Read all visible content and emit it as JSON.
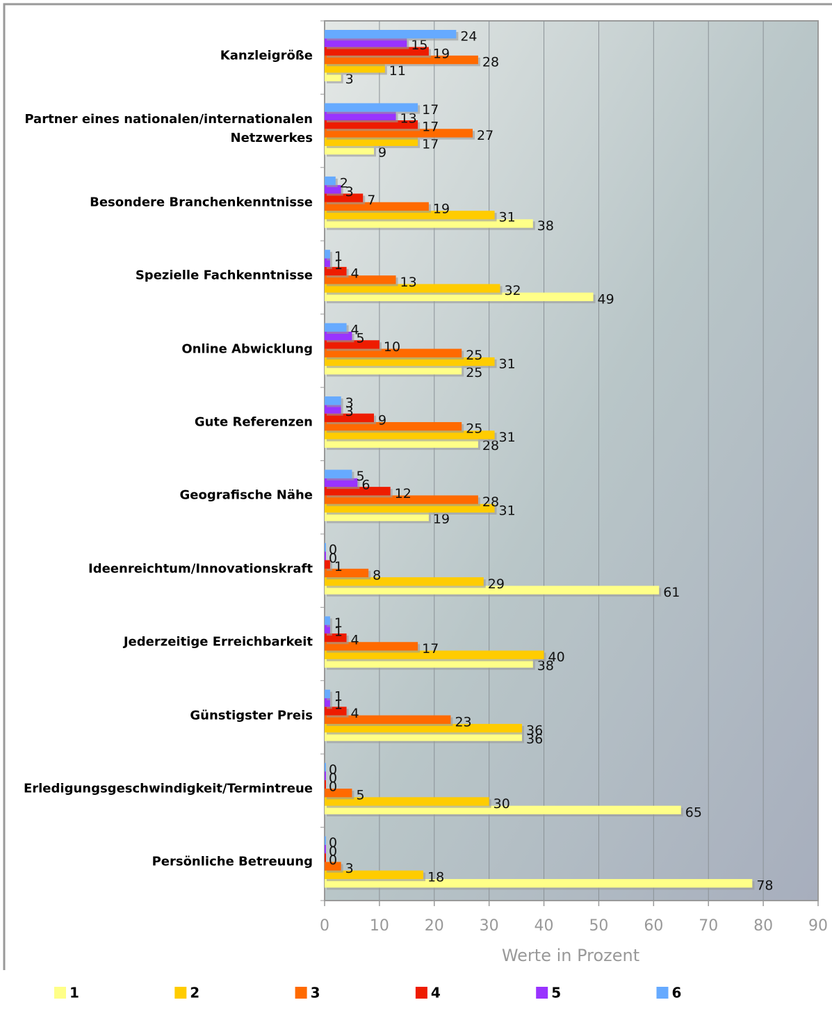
{
  "chart_data": {
    "type": "bar",
    "orientation": "horizontal",
    "x_label": "Werte in Prozent",
    "categories": [
      "Kanzleigröße",
      "Partner eines nationalen/internationalen Netzwerkes",
      "Besondere Branchenkenntnisse",
      "Spezielle Fachkenntnisse",
      "Online Abwicklung",
      "Gute Referenzen",
      "Geografische Nähe",
      "Ideenreichtum/Innovationskraft",
      "Jederzeitige Erreichbarkeit",
      "Günstigster Preis",
      "Erledigungsgeschwindigkeit/Termintreue",
      "Persönliche Betreuung"
    ],
    "series": [
      {
        "name": "1",
        "color": "#ffff88",
        "values": [
          3,
          9,
          38,
          49,
          25,
          28,
          19,
          61,
          38,
          36,
          65,
          78
        ]
      },
      {
        "name": "2",
        "color": "#ffcc00",
        "values": [
          11,
          17,
          31,
          32,
          31,
          31,
          31,
          29,
          40,
          36,
          30,
          18
        ]
      },
      {
        "name": "3",
        "color": "#ff6a00",
        "values": [
          28,
          27,
          19,
          13,
          25,
          25,
          28,
          8,
          17,
          23,
          5,
          3
        ]
      },
      {
        "name": "4",
        "color": "#ee1c00",
        "values": [
          19,
          17,
          7,
          4,
          10,
          9,
          12,
          1,
          4,
          4,
          0,
          0
        ]
      },
      {
        "name": "5",
        "color": "#9933ff",
        "values": [
          15,
          13,
          3,
          1,
          5,
          3,
          6,
          0,
          1,
          1,
          0,
          0
        ]
      },
      {
        "name": "6",
        "color": "#66aaff",
        "values": [
          24,
          17,
          2,
          1,
          4,
          3,
          5,
          0,
          1,
          1,
          0,
          0
        ]
      }
    ],
    "xlim": [
      0,
      90
    ],
    "xticks": [
      0,
      10,
      20,
      30,
      40,
      50,
      60,
      70,
      80,
      90
    ],
    "grid": true,
    "legend": "bottom"
  }
}
